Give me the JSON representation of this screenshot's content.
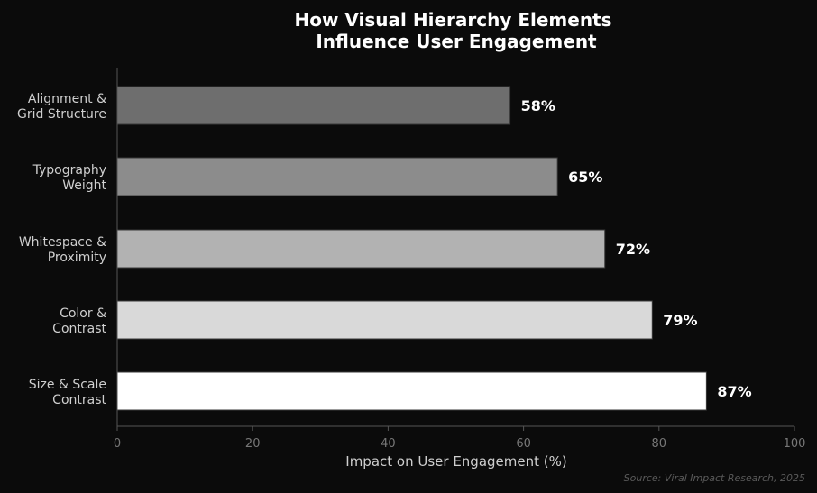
{
  "chart_data": {
    "type": "bar",
    "orientation": "horizontal",
    "title_lines": [
      "How Visual Hierarchy Elements",
      "Influence User Engagement"
    ],
    "xlabel": "Impact on User Engagement (%)",
    "ylabel": "",
    "xlim": [
      0,
      100
    ],
    "xticks": [
      0,
      20,
      40,
      60,
      80,
      100
    ],
    "grid": false,
    "categories": [
      {
        "lines": [
          "Alignment &",
          "Grid Structure"
        ],
        "value": 58,
        "label": "58%",
        "color": "#6e6e6e"
      },
      {
        "lines": [
          "Typography",
          "Weight"
        ],
        "value": 65,
        "label": "65%",
        "color": "#8c8c8c"
      },
      {
        "lines": [
          "Whitespace &",
          "Proximity"
        ],
        "value": 72,
        "label": "72%",
        "color": "#b2b2b2"
      },
      {
        "lines": [
          "Color &",
          "Contrast"
        ],
        "value": 79,
        "label": "79%",
        "color": "#d9d9d9"
      },
      {
        "lines": [
          "Size & Scale",
          "Contrast"
        ],
        "value": 87,
        "label": "87%",
        "color": "#ffffff"
      }
    ],
    "source_note": "Source: Viral Impact Research, 2025"
  },
  "colors": {
    "background": "#0b0b0b",
    "axis": "#555555",
    "tick_text": "#777777",
    "category_text": "#cfcfcf",
    "title": "#ffffff",
    "value_label": "#ffffff",
    "source_text": "#5a5a5a"
  }
}
